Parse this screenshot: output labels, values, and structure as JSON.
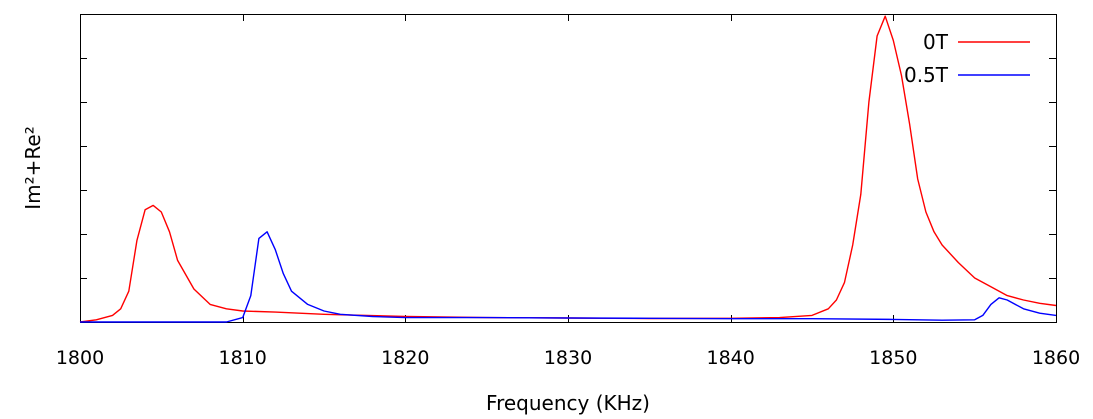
{
  "chart_data": {
    "type": "line",
    "xlabel": "Frequency (KHz)",
    "ylabel": "Im²+Re²",
    "xlim": [
      1800,
      1860
    ],
    "ylim": [
      0,
      1.4
    ],
    "x_ticks": [
      1800,
      1810,
      1820,
      1830,
      1840,
      1850,
      1860
    ],
    "x_tick_labels": [
      "1800",
      "1810",
      "1820",
      "1830",
      "1840",
      "1850",
      "1860"
    ],
    "y_minor_ticks": [
      0.2,
      0.4,
      0.6,
      0.8,
      1.0,
      1.2
    ],
    "grid": false,
    "legend_position": "top-right",
    "series": [
      {
        "name": "0T",
        "color": "#ff0000",
        "x": [
          1800,
          1801,
          1802,
          1802.5,
          1803,
          1803.5,
          1804,
          1804.5,
          1805,
          1805.5,
          1806,
          1807,
          1808,
          1809,
          1810,
          1812,
          1815,
          1820,
          1825,
          1830,
          1835,
          1840,
          1843,
          1845,
          1846,
          1846.5,
          1847,
          1847.5,
          1848,
          1848.5,
          1849,
          1849.5,
          1850,
          1850.5,
          1851,
          1851.5,
          1852,
          1852.5,
          1853,
          1854,
          1855,
          1856,
          1857,
          1858,
          1859,
          1860
        ],
        "y": [
          0.0,
          0.01,
          0.03,
          0.06,
          0.14,
          0.37,
          0.51,
          0.53,
          0.5,
          0.41,
          0.28,
          0.15,
          0.08,
          0.06,
          0.05,
          0.045,
          0.035,
          0.025,
          0.02,
          0.018,
          0.016,
          0.017,
          0.02,
          0.03,
          0.06,
          0.1,
          0.18,
          0.35,
          0.58,
          1.0,
          1.3,
          1.39,
          1.28,
          1.12,
          0.9,
          0.65,
          0.5,
          0.41,
          0.35,
          0.27,
          0.2,
          0.16,
          0.12,
          0.1,
          0.085,
          0.075
        ]
      },
      {
        "name": "0.5T",
        "color": "#0000ff",
        "x": [
          1800,
          1805,
          1809,
          1810,
          1810.5,
          1811,
          1811.5,
          1812,
          1812.5,
          1813,
          1814,
          1815,
          1816,
          1818,
          1820,
          1825,
          1830,
          1835,
          1840,
          1845,
          1850,
          1853,
          1855,
          1855.5,
          1856,
          1856.5,
          1857,
          1858,
          1859,
          1860
        ],
        "y": [
          0.0,
          0.0,
          0.0,
          0.02,
          0.12,
          0.38,
          0.41,
          0.33,
          0.22,
          0.14,
          0.08,
          0.05,
          0.035,
          0.025,
          0.02,
          0.02,
          0.018,
          0.017,
          0.015,
          0.015,
          0.012,
          0.008,
          0.01,
          0.03,
          0.08,
          0.11,
          0.1,
          0.06,
          0.04,
          0.03
        ]
      }
    ]
  }
}
